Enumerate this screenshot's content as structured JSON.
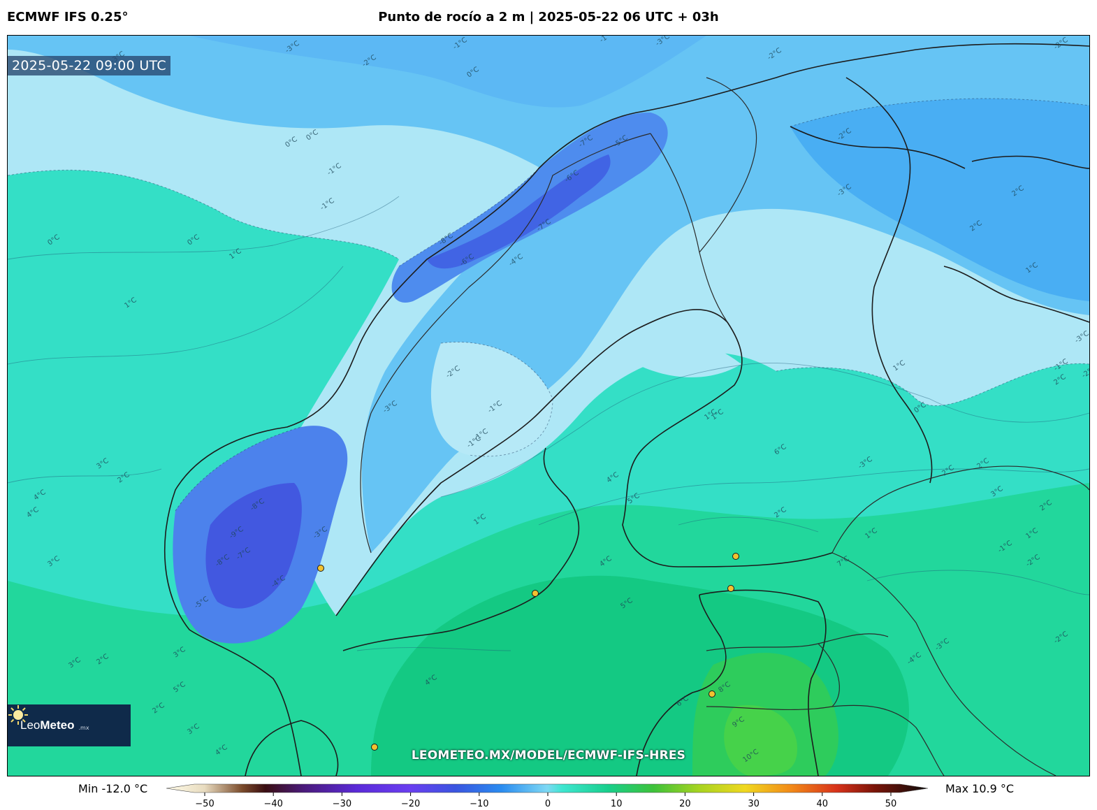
{
  "header": {
    "model_title": "ECMWF IFS 0.25°",
    "product_title": "Punto de rocío a 2 m | 2025-05-22 06 UTC + 03h"
  },
  "map": {
    "valid_time": "2025-05-22 09:00 UTC",
    "watermark": "LEOMETEO.MX/MODEL/ECMWF-IFS-HRES",
    "logo": {
      "name_light": "Leo",
      "name_bold": "Meteo",
      "suffix": ".mx",
      "icon": "sun-icon"
    },
    "contour_labels": [
      "-3°C",
      "-2°C",
      "-3°C",
      "-1°C",
      "-3°C",
      "0°C",
      "-1°C",
      "-2°C",
      "-2°C",
      "0°C",
      "-1°C",
      "0°C",
      "1°C",
      "0°C",
      "0°C",
      "1°C",
      "-2°C",
      "-1°C",
      "-3°C",
      "-7°C",
      "-6°C",
      "-5°C",
      "-7°C",
      "-8°C",
      "-6°C",
      "-4°C",
      "-3°C",
      "-2°C",
      "-1°C",
      "-1°C",
      "1°C",
      "2°C",
      "2°C",
      "1°C",
      "1°C",
      "2°C",
      "3°C",
      "2°C",
      "4°C",
      "4°C",
      "3°C",
      "-3°C",
      "-8°C",
      "-9°C",
      "-7°C",
      "-4°C",
      "-8°C",
      "-5°C",
      "3°C",
      "5°C",
      "2°C",
      "3°C",
      "2°C",
      "-1°C",
      "1°C",
      "4°C",
      "5°C",
      "2°C",
      "1°C",
      "2°C",
      "2°C",
      "3°C",
      "2°C",
      "1°C",
      "0°C",
      "1°C",
      "-1°C",
      "-2°C",
      "-3°C",
      "-4°C",
      "-2°C",
      "-3°C",
      "-2°C",
      "-1°C",
      "-3°C",
      "4°C",
      "6°C",
      "8°C",
      "9°C",
      "10°C",
      "4°C",
      "5°C",
      "6°C",
      "7°C",
      "3°C",
      "4°C"
    ]
  },
  "colorbar": {
    "min_label": "Min -12.0 °C",
    "max_label": "Max 10.9 °C",
    "ticks": [
      "−50",
      "−40",
      "−30",
      "−20",
      "−10",
      "0",
      "10",
      "20",
      "30",
      "40",
      "50"
    ],
    "range": [
      -50,
      50
    ],
    "unit": "°C"
  },
  "colors": {
    "ocean_mild": "#2fdcc0",
    "cold_light": "#a9e6f6",
    "cold_mid": "#4aa8f0",
    "cold_deep": "#3c62e4",
    "warm_green": "#18c87a",
    "warmest": "#3ccf4a"
  }
}
